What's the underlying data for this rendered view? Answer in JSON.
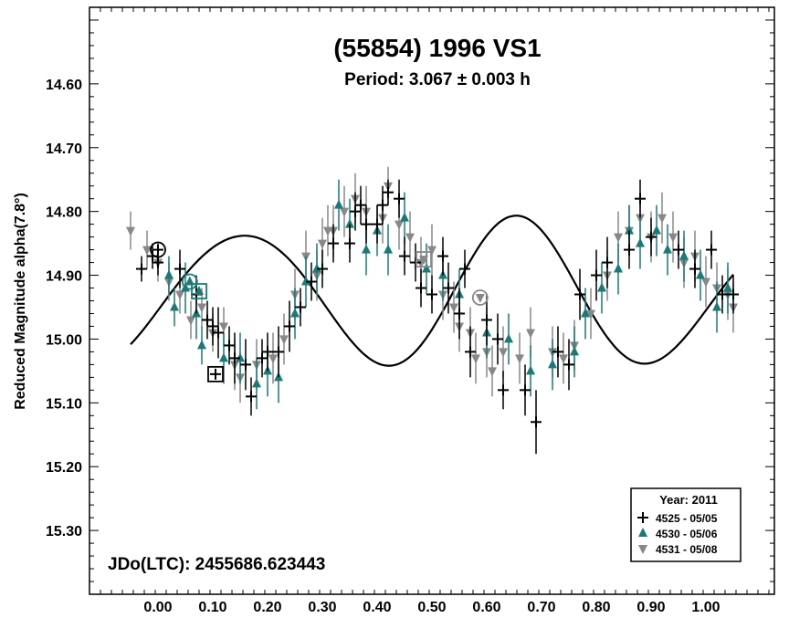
{
  "chart_data": {
    "type": "scatter",
    "title": "(55854) 1996 VS1",
    "subtitle": "Period: 3.067 ± 0.003 h",
    "ylabel": "Reduced Magnitude alpha(7.8°)",
    "xlabel": "",
    "xlim": [
      -0.125,
      1.125
    ],
    "ylim": [
      14.48,
      15.4
    ],
    "y_inverted": true,
    "grid": false,
    "x_ticks": [
      "0.00",
      "0.10",
      "0.20",
      "0.30",
      "0.40",
      "0.50",
      "0.60",
      "0.70",
      "0.80",
      "0.90",
      "1.00"
    ],
    "y_ticks": [
      "14.60",
      "14.70",
      "14.80",
      "14.90",
      "15.00",
      "15.10",
      "15.20",
      "15.30"
    ],
    "annotation": "JDo(LTC): 2455686.623443",
    "legend": {
      "title": "Year: 2011",
      "placement": "bottom-right",
      "entries": [
        "4525 - 05/05",
        "4530 - 05/06",
        "4531 - 05/08"
      ]
    },
    "colors": {
      "s1": "#000000",
      "s2": "#1a7a7a",
      "s3": "#888888",
      "fit": "#000000"
    },
    "series": [
      {
        "name": "4525 - 05/05",
        "marker": "plus",
        "points": [
          [
            -0.03,
            14.89,
            0.02
          ],
          [
            -0.01,
            14.87,
            0.02
          ],
          [
            0.0,
            14.88,
            0.02
          ],
          [
            0.04,
            14.89,
            0.03
          ],
          [
            0.07,
            14.93,
            0.03
          ],
          [
            0.09,
            14.97,
            0.03
          ],
          [
            0.1,
            14.98,
            0.03
          ],
          [
            0.11,
            14.99,
            0.04
          ],
          [
            0.13,
            15.01,
            0.03
          ],
          [
            0.14,
            15.03,
            0.04
          ],
          [
            0.16,
            15.04,
            0.04
          ],
          [
            0.17,
            15.09,
            0.03
          ],
          [
            0.19,
            15.03,
            0.03
          ],
          [
            0.2,
            15.02,
            0.03
          ],
          [
            0.22,
            15.02,
            0.04
          ],
          [
            0.24,
            14.98,
            0.04
          ],
          [
            0.26,
            14.95,
            0.03
          ],
          [
            0.28,
            14.91,
            0.03
          ],
          [
            0.3,
            14.89,
            0.03
          ],
          [
            0.32,
            14.85,
            0.03
          ],
          [
            0.35,
            14.85,
            0.03
          ],
          [
            0.36,
            14.8,
            0.03
          ],
          [
            0.37,
            14.79,
            0.03
          ],
          [
            0.38,
            14.82,
            0.03
          ],
          [
            0.4,
            14.82,
            0.03
          ],
          [
            0.41,
            14.79,
            0.03
          ],
          [
            0.42,
            14.77,
            0.02
          ],
          [
            0.44,
            14.78,
            0.03
          ],
          [
            0.45,
            14.87,
            0.03
          ],
          [
            0.47,
            14.88,
            0.03
          ],
          [
            0.48,
            14.92,
            0.03
          ],
          [
            0.5,
            14.93,
            0.03
          ],
          [
            0.52,
            14.87,
            0.03
          ],
          [
            0.53,
            14.92,
            0.04
          ],
          [
            0.55,
            14.96,
            0.04
          ],
          [
            0.56,
            14.89,
            0.03
          ],
          [
            0.57,
            15.02,
            0.04
          ],
          [
            0.6,
            14.97,
            0.04
          ],
          [
            0.62,
            15.0,
            0.04
          ],
          [
            0.63,
            15.08,
            0.03
          ],
          [
            0.67,
            15.08,
            0.04
          ],
          [
            0.69,
            15.13,
            0.05
          ],
          [
            0.73,
            15.02,
            0.04
          ],
          [
            0.75,
            15.04,
            0.04
          ],
          [
            0.77,
            14.93,
            0.04
          ],
          [
            0.8,
            14.9,
            0.04
          ],
          [
            0.82,
            14.88,
            0.04
          ],
          [
            0.86,
            14.86,
            0.03
          ],
          [
            0.88,
            14.78,
            0.03
          ],
          [
            0.9,
            14.84,
            0.03
          ],
          [
            0.95,
            14.86,
            0.03
          ],
          [
            0.98,
            14.89,
            0.03
          ],
          [
            1.01,
            14.86,
            0.03
          ],
          [
            1.03,
            14.93,
            0.03
          ],
          [
            1.05,
            14.93,
            0.03
          ]
        ]
      },
      {
        "name": "4530 - 05/06",
        "marker": "triangle-up",
        "points": [
          [
            0.02,
            14.9,
            0.03
          ],
          [
            0.03,
            14.95,
            0.03
          ],
          [
            0.05,
            14.92,
            0.04
          ],
          [
            0.07,
            14.96,
            0.04
          ],
          [
            0.08,
            15.01,
            0.03
          ],
          [
            0.12,
            15.03,
            0.04
          ],
          [
            0.15,
            15.03,
            0.04
          ],
          [
            0.18,
            15.07,
            0.04
          ],
          [
            0.2,
            15.05,
            0.04
          ],
          [
            0.22,
            15.06,
            0.04
          ],
          [
            0.25,
            14.96,
            0.04
          ],
          [
            0.27,
            14.91,
            0.04
          ],
          [
            0.29,
            14.89,
            0.04
          ],
          [
            0.33,
            14.79,
            0.04
          ],
          [
            0.35,
            14.82,
            0.04
          ],
          [
            0.38,
            14.86,
            0.04
          ],
          [
            0.4,
            14.83,
            0.04
          ],
          [
            0.42,
            14.86,
            0.04
          ],
          [
            0.45,
            14.81,
            0.04
          ],
          [
            0.49,
            14.89,
            0.04
          ],
          [
            0.52,
            14.9,
            0.04
          ],
          [
            0.55,
            14.93,
            0.04
          ],
          [
            0.6,
            14.99,
            0.04
          ],
          [
            0.64,
            15.0,
            0.04
          ],
          [
            0.68,
            15.05,
            0.04
          ],
          [
            0.72,
            15.04,
            0.04
          ],
          [
            0.76,
            15.02,
            0.04
          ],
          [
            0.78,
            14.96,
            0.04
          ],
          [
            0.81,
            14.92,
            0.04
          ],
          [
            0.84,
            14.89,
            0.04
          ],
          [
            0.86,
            14.83,
            0.04
          ],
          [
            0.88,
            14.85,
            0.04
          ],
          [
            0.91,
            14.83,
            0.04
          ],
          [
            0.93,
            14.86,
            0.04
          ],
          [
            0.96,
            14.87,
            0.04
          ],
          [
            0.99,
            14.9,
            0.04
          ],
          [
            1.02,
            14.95,
            0.04
          ],
          [
            1.04,
            14.92,
            0.04
          ]
        ]
      },
      {
        "name": "4531 - 05/08",
        "marker": "triangle-down",
        "points": [
          [
            -0.05,
            14.83,
            0.03
          ],
          [
            -0.02,
            14.86,
            0.03
          ],
          [
            0.0,
            14.88,
            0.03
          ],
          [
            0.02,
            14.91,
            0.03
          ],
          [
            0.04,
            14.93,
            0.03
          ],
          [
            0.06,
            14.97,
            0.03
          ],
          [
            0.08,
            14.95,
            0.03
          ],
          [
            0.1,
            14.99,
            0.03
          ],
          [
            0.12,
            14.98,
            0.03
          ],
          [
            0.14,
            15.04,
            0.04
          ],
          [
            0.15,
            15.06,
            0.04
          ],
          [
            0.18,
            15.04,
            0.04
          ],
          [
            0.21,
            15.03,
            0.04
          ],
          [
            0.23,
            15.0,
            0.04
          ],
          [
            0.25,
            14.93,
            0.04
          ],
          [
            0.27,
            14.87,
            0.04
          ],
          [
            0.29,
            14.9,
            0.04
          ],
          [
            0.3,
            14.85,
            0.04
          ],
          [
            0.31,
            14.83,
            0.04
          ],
          [
            0.32,
            14.83,
            0.04
          ],
          [
            0.34,
            14.8,
            0.04
          ],
          [
            0.36,
            14.78,
            0.04
          ],
          [
            0.38,
            14.8,
            0.04
          ],
          [
            0.41,
            14.81,
            0.04
          ],
          [
            0.42,
            14.76,
            0.03
          ],
          [
            0.44,
            14.82,
            0.04
          ],
          [
            0.46,
            14.84,
            0.04
          ],
          [
            0.48,
            14.88,
            0.04
          ],
          [
            0.5,
            14.86,
            0.04
          ],
          [
            0.52,
            14.93,
            0.04
          ],
          [
            0.54,
            14.95,
            0.04
          ],
          [
            0.55,
            14.98,
            0.04
          ],
          [
            0.57,
            14.99,
            0.04
          ],
          [
            0.58,
            15.03,
            0.04
          ],
          [
            0.6,
            15.02,
            0.04
          ],
          [
            0.61,
            15.05,
            0.04
          ],
          [
            0.63,
            15.02,
            0.04
          ],
          [
            0.66,
            15.03,
            0.04
          ],
          [
            0.68,
            14.99,
            0.04
          ],
          [
            0.72,
            15.02,
            0.04
          ],
          [
            0.74,
            15.03,
            0.04
          ],
          [
            0.76,
            15.01,
            0.04
          ],
          [
            0.79,
            14.96,
            0.04
          ],
          [
            0.82,
            14.9,
            0.04
          ],
          [
            0.84,
            14.84,
            0.04
          ],
          [
            0.86,
            14.83,
            0.04
          ],
          [
            0.88,
            14.81,
            0.04
          ],
          [
            0.9,
            14.84,
            0.04
          ],
          [
            0.92,
            14.81,
            0.04
          ],
          [
            0.94,
            14.84,
            0.04
          ],
          [
            0.96,
            14.88,
            0.04
          ],
          [
            0.98,
            14.87,
            0.04
          ],
          [
            1.0,
            14.91,
            0.04
          ],
          [
            1.02,
            14.92,
            0.04
          ],
          [
            1.04,
            14.93,
            0.04
          ],
          [
            1.05,
            14.95,
            0.04
          ]
        ]
      }
    ],
    "highlighted": [
      {
        "series": "4525 - 05/05",
        "shape": "circle",
        "x": 0.0,
        "y": 14.86
      },
      {
        "series": "4525 - 05/05",
        "shape": "square",
        "x": 0.105,
        "y": 15.055
      },
      {
        "series": "4530 - 05/06",
        "shape": "circle",
        "x": 0.058,
        "y": 14.91
      },
      {
        "series": "4530 - 05/06",
        "shape": "square",
        "x": 0.075,
        "y": 14.925
      },
      {
        "series": "4531 - 05/08",
        "shape": "circle",
        "x": 0.588,
        "y": 14.935
      },
      {
        "series": "4531 - 05/08",
        "shape": "square",
        "x": 0.485,
        "y": 14.875
      }
    ],
    "fit_curve": {
      "type": "fourier",
      "period_h": 3.067,
      "mean": 14.93,
      "harmonics": [
        {
          "n": 1,
          "a": 0.0,
          "b": 0.0
        },
        {
          "n": 2,
          "a": 0.04,
          "b": -0.1
        },
        {
          "n": 3,
          "a": -0.015,
          "b": 0.005
        }
      ],
      "x_range": [
        -0.05,
        1.05
      ]
    }
  }
}
